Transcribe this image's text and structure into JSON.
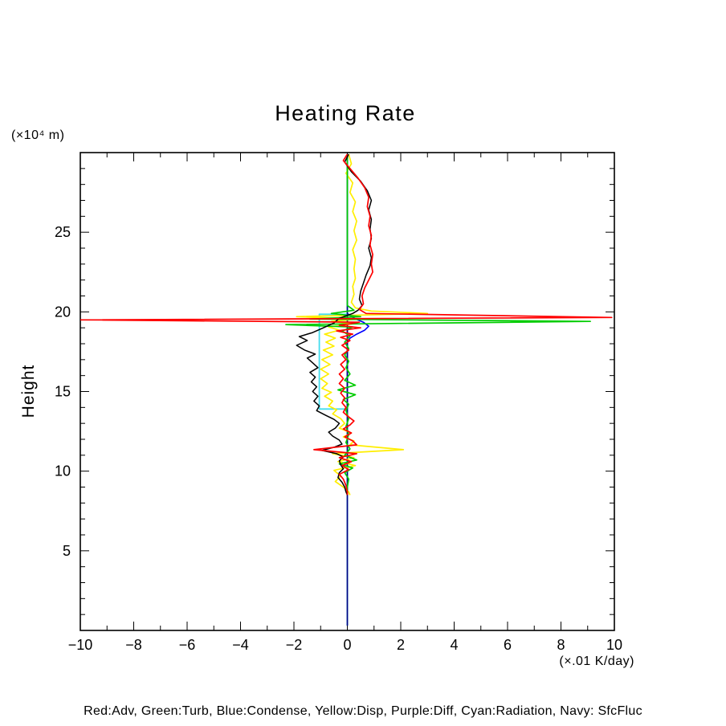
{
  "title": "Heating Rate",
  "y_unit_label": "(×10⁴ m)",
  "y_axis_label": "Height",
  "x_unit_label": "(×.01 K/day)",
  "legend_text": "Red:Adv, Green:Turb, Blue:Condense, Yellow:Disp, Purple:Diff, Cyan:Radiation, Navy: SfcFluc",
  "colors": {
    "background": "#FFFFFF",
    "frame": "#000000",
    "red": "#FF0000",
    "green": "#00CC00",
    "blue": "#0000FF",
    "yellow": "#FFEE00",
    "purple": "#800080",
    "cyan": "#44DDEE",
    "navy": "#000080",
    "black": "#000000"
  },
  "chart_data": {
    "type": "line",
    "title": "Heating Rate",
    "xlabel": "(×.01 K/day)",
    "ylabel": "Height (×10⁴ m)",
    "xlim": [
      -10,
      10
    ],
    "ylim": [
      0,
      30
    ],
    "x_major_ticks": [
      -10,
      -8,
      -6,
      -4,
      -2,
      0,
      2,
      4,
      6,
      8,
      10
    ],
    "x_minor_step": 1,
    "y_labeled_ticks": [
      5,
      10,
      15,
      20,
      25
    ],
    "y_minor_step": 1,
    "grid": false,
    "legend_position": "bottom-caption",
    "series": [
      {
        "id": "diff",
        "label": "Purple:Diff",
        "color": "#800080",
        "width": 1.6,
        "points": [
          [
            0,
            29.9
          ],
          [
            0,
            0.3
          ]
        ]
      },
      {
        "id": "condense",
        "label": "Blue:Condense",
        "color": "#0000FF",
        "width": 1.6,
        "points": [
          [
            0,
            29.9
          ],
          [
            0,
            19.9
          ],
          [
            0.25,
            19.6
          ],
          [
            0.6,
            19.35
          ],
          [
            0.8,
            19.1
          ],
          [
            0.65,
            18.85
          ],
          [
            0.35,
            18.6
          ],
          [
            0.1,
            18.35
          ],
          [
            0,
            18.1
          ],
          [
            0,
            0.3
          ]
        ]
      },
      {
        "id": "radiation",
        "label": "Cyan:Radiation",
        "color": "#44DDEE",
        "width": 1.8,
        "points": [
          [
            0,
            29.9
          ],
          [
            0,
            19.85
          ],
          [
            -1.05,
            19.85
          ],
          [
            -1.05,
            13.9
          ],
          [
            0,
            13.9
          ],
          [
            0,
            0.3
          ]
        ]
      },
      {
        "id": "sfcfluc",
        "label": "Navy: SfcFluc",
        "color": "#000080",
        "width": 1.6,
        "points": [
          [
            0,
            29.9
          ],
          [
            0,
            0.3
          ]
        ]
      },
      {
        "id": "disp",
        "label": "Yellow:Disp",
        "color": "#FFEE00",
        "width": 1.7,
        "points": [
          [
            0.05,
            29.9
          ],
          [
            0.15,
            29.3
          ],
          [
            -0.05,
            28.7
          ],
          [
            0.2,
            28.1
          ],
          [
            0.1,
            27.5
          ],
          [
            0.3,
            26.9
          ],
          [
            0.2,
            26.3
          ],
          [
            0.35,
            25.7
          ],
          [
            0.25,
            25.1
          ],
          [
            0.35,
            24.5
          ],
          [
            0.2,
            23.9
          ],
          [
            0.3,
            23.3
          ],
          [
            0.25,
            22.7
          ],
          [
            0.3,
            22.1
          ],
          [
            0.2,
            21.6
          ],
          [
            0.25,
            21.1
          ],
          [
            0.15,
            20.6
          ],
          [
            0.3,
            20.25
          ],
          [
            0.9,
            20.05
          ],
          [
            3.0,
            19.9
          ],
          [
            -1.9,
            19.7
          ],
          [
            0.4,
            19.55
          ],
          [
            -0.6,
            19.4
          ],
          [
            0.2,
            19.25
          ],
          [
            -0.7,
            19.05
          ],
          [
            -0.3,
            18.85
          ],
          [
            -0.85,
            18.6
          ],
          [
            -0.45,
            18.35
          ],
          [
            -0.8,
            18.1
          ],
          [
            -0.5,
            17.85
          ],
          [
            -0.9,
            17.6
          ],
          [
            -0.55,
            17.3
          ],
          [
            -0.95,
            17.0
          ],
          [
            -0.65,
            16.7
          ],
          [
            -1.0,
            16.4
          ],
          [
            -0.7,
            16.1
          ],
          [
            -1.0,
            15.8
          ],
          [
            -0.75,
            15.5
          ],
          [
            -0.95,
            15.2
          ],
          [
            -0.6,
            14.95
          ],
          [
            -0.85,
            14.7
          ],
          [
            -0.55,
            14.4
          ],
          [
            -0.7,
            14.1
          ],
          [
            -0.4,
            13.85
          ],
          [
            -0.55,
            13.6
          ],
          [
            -0.25,
            13.3
          ],
          [
            -0.1,
            13.0
          ],
          [
            -0.3,
            12.7
          ],
          [
            0.15,
            12.4
          ],
          [
            -0.15,
            12.15
          ],
          [
            0.25,
            11.9
          ],
          [
            0.1,
            11.65
          ],
          [
            2.1,
            11.35
          ],
          [
            -0.55,
            11.1
          ],
          [
            0.25,
            10.85
          ],
          [
            -0.35,
            10.6
          ],
          [
            0.3,
            10.35
          ],
          [
            -0.5,
            10.05
          ],
          [
            -0.25,
            9.7
          ],
          [
            -0.45,
            9.35
          ],
          [
            -0.15,
            9.0
          ],
          [
            0.05,
            8.7
          ],
          [
            0.1,
            8.5
          ]
        ]
      },
      {
        "id": "turb",
        "label": "Green:Turb",
        "color": "#00CC00",
        "width": 1.7,
        "points": [
          [
            0,
            29.9
          ],
          [
            0,
            20.4
          ],
          [
            0.25,
            20.1
          ],
          [
            -0.6,
            19.9
          ],
          [
            0.5,
            19.7
          ],
          [
            -1.4,
            19.55
          ],
          [
            9.1,
            19.4
          ],
          [
            -2.3,
            19.2
          ],
          [
            0.2,
            19.05
          ],
          [
            -0.2,
            18.8
          ],
          [
            0.1,
            18.5
          ],
          [
            -0.1,
            18.1
          ],
          [
            0.05,
            17.7
          ],
          [
            -0.1,
            17.3
          ],
          [
            0.05,
            16.9
          ],
          [
            -0.05,
            16.5
          ],
          [
            0.1,
            16.1
          ],
          [
            -0.1,
            15.7
          ],
          [
            0.3,
            15.4
          ],
          [
            -0.35,
            15.1
          ],
          [
            0.3,
            14.8
          ],
          [
            -0.15,
            14.5
          ],
          [
            0.05,
            14.2
          ],
          [
            -0.05,
            13.8
          ],
          [
            0.05,
            13.3
          ],
          [
            -0.05,
            12.8
          ],
          [
            0.05,
            12.3
          ],
          [
            -0.05,
            11.8
          ],
          [
            0.1,
            11.4
          ],
          [
            -0.1,
            11.0
          ],
          [
            0.35,
            10.7
          ],
          [
            -0.3,
            10.45
          ],
          [
            0.2,
            10.2
          ],
          [
            -0.1,
            9.9
          ],
          [
            0.05,
            9.5
          ],
          [
            0,
            9.0
          ],
          [
            0,
            8.5
          ]
        ]
      },
      {
        "id": "black-curve",
        "label": "(unlabeled black curve)",
        "color": "#000000",
        "width": 1.5,
        "points": [
          [
            0.05,
            29.9
          ],
          [
            -0.1,
            29.4
          ],
          [
            0.15,
            28.8
          ],
          [
            0.5,
            28.2
          ],
          [
            0.75,
            27.6
          ],
          [
            0.9,
            27.0
          ],
          [
            0.8,
            26.4
          ],
          [
            0.9,
            25.8
          ],
          [
            0.85,
            25.2
          ],
          [
            0.9,
            24.6
          ],
          [
            0.8,
            24.0
          ],
          [
            0.9,
            23.4
          ],
          [
            0.85,
            22.9
          ],
          [
            0.7,
            22.3
          ],
          [
            0.6,
            21.8
          ],
          [
            0.5,
            21.3
          ],
          [
            0.45,
            20.8
          ],
          [
            0.55,
            20.4
          ],
          [
            0.4,
            20.1
          ],
          [
            0.2,
            19.9
          ],
          [
            -0.3,
            19.6
          ],
          [
            -0.5,
            19.3
          ],
          [
            -0.9,
            19.0
          ],
          [
            -1.3,
            18.7
          ],
          [
            -1.8,
            18.45
          ],
          [
            -1.5,
            18.2
          ],
          [
            -1.9,
            17.9
          ],
          [
            -1.6,
            17.6
          ],
          [
            -1.2,
            17.35
          ],
          [
            -1.5,
            17.1
          ],
          [
            -1.3,
            16.8
          ],
          [
            -1.1,
            16.5
          ],
          [
            -1.4,
            16.2
          ],
          [
            -1.2,
            15.9
          ],
          [
            -1.35,
            15.6
          ],
          [
            -1.15,
            15.3
          ],
          [
            -1.3,
            15.0
          ],
          [
            -1.1,
            14.7
          ],
          [
            -1.25,
            14.4
          ],
          [
            -1.05,
            14.1
          ],
          [
            -1.15,
            13.8
          ],
          [
            -0.8,
            13.5
          ],
          [
            -0.5,
            13.25
          ],
          [
            -0.3,
            13.0
          ],
          [
            -0.45,
            12.7
          ],
          [
            -0.7,
            12.45
          ],
          [
            -0.55,
            12.2
          ],
          [
            -0.3,
            11.95
          ],
          [
            -0.2,
            11.7
          ],
          [
            -0.5,
            11.5
          ],
          [
            -0.95,
            11.3
          ],
          [
            -0.4,
            11.1
          ],
          [
            -0.15,
            10.9
          ],
          [
            -0.3,
            10.65
          ],
          [
            -0.25,
            10.4
          ],
          [
            -0.15,
            10.15
          ],
          [
            -0.3,
            9.9
          ],
          [
            -0.35,
            9.6
          ],
          [
            -0.2,
            9.3
          ],
          [
            -0.1,
            9.0
          ],
          [
            -0.05,
            8.7
          ],
          [
            0,
            8.5
          ]
        ]
      },
      {
        "id": "adv",
        "label": "Red:Adv",
        "color": "#FF0000",
        "width": 1.7,
        "points": [
          [
            0,
            29.9
          ],
          [
            -0.15,
            29.5
          ],
          [
            0.1,
            29.0
          ],
          [
            0.4,
            28.4
          ],
          [
            0.65,
            27.8
          ],
          [
            0.8,
            27.2
          ],
          [
            0.75,
            26.6
          ],
          [
            0.85,
            26.0
          ],
          [
            0.8,
            25.4
          ],
          [
            0.9,
            24.8
          ],
          [
            0.85,
            24.2
          ],
          [
            0.95,
            23.6
          ],
          [
            0.9,
            23.0
          ],
          [
            0.95,
            22.5
          ],
          [
            0.8,
            22.0
          ],
          [
            0.65,
            21.5
          ],
          [
            0.55,
            21.0
          ],
          [
            0.6,
            20.5
          ],
          [
            0.45,
            20.15
          ],
          [
            0.7,
            19.9
          ],
          [
            9.9,
            19.65
          ],
          [
            -10,
            19.5
          ],
          [
            0.45,
            19.35
          ],
          [
            -0.3,
            19.15
          ],
          [
            0.5,
            19.0
          ],
          [
            -0.4,
            18.8
          ],
          [
            0.2,
            18.6
          ],
          [
            -0.25,
            18.4
          ],
          [
            0.1,
            18.2
          ],
          [
            -0.2,
            17.9
          ],
          [
            0.05,
            17.6
          ],
          [
            -0.2,
            17.3
          ],
          [
            -0.05,
            17.0
          ],
          [
            -0.25,
            16.7
          ],
          [
            -0.1,
            16.4
          ],
          [
            -0.3,
            16.1
          ],
          [
            -0.15,
            15.8
          ],
          [
            -0.3,
            15.5
          ],
          [
            -0.1,
            15.2
          ],
          [
            -0.25,
            14.9
          ],
          [
            -0.1,
            14.6
          ],
          [
            -0.2,
            14.3
          ],
          [
            -0.05,
            14.0
          ],
          [
            -0.15,
            13.7
          ],
          [
            0.05,
            13.4
          ],
          [
            0.25,
            13.15
          ],
          [
            0.1,
            12.9
          ],
          [
            -0.15,
            12.65
          ],
          [
            0.15,
            12.4
          ],
          [
            -0.1,
            12.15
          ],
          [
            0.2,
            11.9
          ],
          [
            0.35,
            11.65
          ],
          [
            -1.25,
            11.35
          ],
          [
            0.35,
            11.1
          ],
          [
            -0.3,
            10.85
          ],
          [
            0.15,
            10.6
          ],
          [
            -0.2,
            10.35
          ],
          [
            0.05,
            10.1
          ],
          [
            -0.3,
            9.8
          ],
          [
            -0.15,
            9.5
          ],
          [
            -0.05,
            9.1
          ],
          [
            0,
            8.7
          ],
          [
            0,
            8.5
          ]
        ]
      }
    ]
  }
}
